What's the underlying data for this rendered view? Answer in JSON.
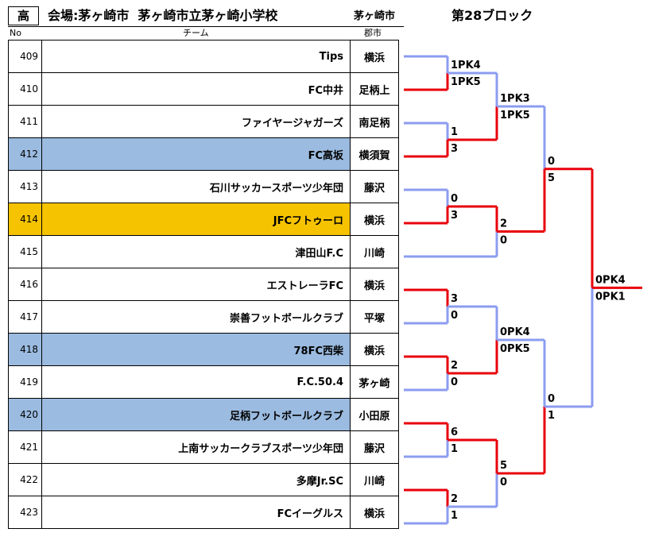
{
  "header": {
    "level": "高",
    "venue": "会場:茅ヶ崎市  茅ヶ崎市立茅ヶ崎小学校",
    "city": "茅ヶ崎市",
    "block": "第28ブロック",
    "col_no": "No",
    "col_team": "チーム",
    "col_city": "郡市"
  },
  "colors": {
    "winner_line": "#e8000b",
    "loser_line": "#8c9cf0",
    "highlight_blue": "#9bbbe0",
    "highlight_orange": "#f5c300"
  },
  "teams": [
    {
      "no": "409",
      "name": "Tips",
      "city": "横浜",
      "highlight": "none"
    },
    {
      "no": "410",
      "name": "FC中井",
      "city": "足柄上",
      "highlight": "none"
    },
    {
      "no": "411",
      "name": "ファイヤージャガーズ",
      "city": "南足柄",
      "highlight": "none"
    },
    {
      "no": "412",
      "name": "FC高坂",
      "city": "横須賀",
      "highlight": "blue"
    },
    {
      "no": "413",
      "name": "石川サッカースポーツ少年団",
      "city": "藤沢",
      "highlight": "none"
    },
    {
      "no": "414",
      "name": "JFCフトゥーロ",
      "city": "横浜",
      "highlight": "orange"
    },
    {
      "no": "415",
      "name": "津田山F.C",
      "city": "川崎",
      "highlight": "none"
    },
    {
      "no": "416",
      "name": "エストレーラFC",
      "city": "横浜",
      "highlight": "none"
    },
    {
      "no": "417",
      "name": "崇善フットボールクラブ",
      "city": "平塚",
      "highlight": "none"
    },
    {
      "no": "418",
      "name": "78FC西柴",
      "city": "横浜",
      "highlight": "blue"
    },
    {
      "no": "419",
      "name": "F.C.50.4",
      "city": "茅ヶ崎",
      "highlight": "none"
    },
    {
      "no": "420",
      "name": "足柄フットボールクラブ",
      "city": "小田原",
      "highlight": "blue"
    },
    {
      "no": "421",
      "name": "上南サッカークラブスポーツ少年団",
      "city": "藤沢",
      "highlight": "none"
    },
    {
      "no": "422",
      "name": "多摩Jr.SC",
      "city": "川崎",
      "highlight": "none"
    },
    {
      "no": "423",
      "name": "FCイーグルス",
      "city": "横浜",
      "highlight": "none"
    }
  ],
  "bracket": {
    "round1": [
      {
        "top": "1PK4",
        "bottom": "1PK5",
        "winner": "bottom"
      },
      {
        "top": "1",
        "bottom": "3",
        "winner": "bottom"
      },
      {
        "top": "0",
        "bottom": "3",
        "winner": "bottom"
      },
      {
        "top": "3",
        "bottom": "0",
        "winner": "top"
      },
      {
        "top": "2",
        "bottom": "0",
        "winner": "top"
      },
      {
        "top": "6",
        "bottom": "1",
        "winner": "top"
      },
      {
        "top": "2",
        "bottom": "1",
        "winner": "top"
      }
    ],
    "round2": [
      {
        "top": "1PK3",
        "bottom": "1PK5",
        "winner": "bottom"
      },
      {
        "top": "2",
        "bottom": "0",
        "winner": "top"
      },
      {
        "top": "0PK4",
        "bottom": "0PK5",
        "winner": "bottom"
      },
      {
        "top": "5",
        "bottom": "0",
        "winner": "top"
      }
    ],
    "round3": [
      {
        "top": "0",
        "bottom": "5",
        "winner": "bottom"
      },
      {
        "top": "0",
        "bottom": "1",
        "winner": "bottom"
      }
    ],
    "final": {
      "top": "0PK4",
      "bottom": "0PK1",
      "winner": "top"
    }
  }
}
